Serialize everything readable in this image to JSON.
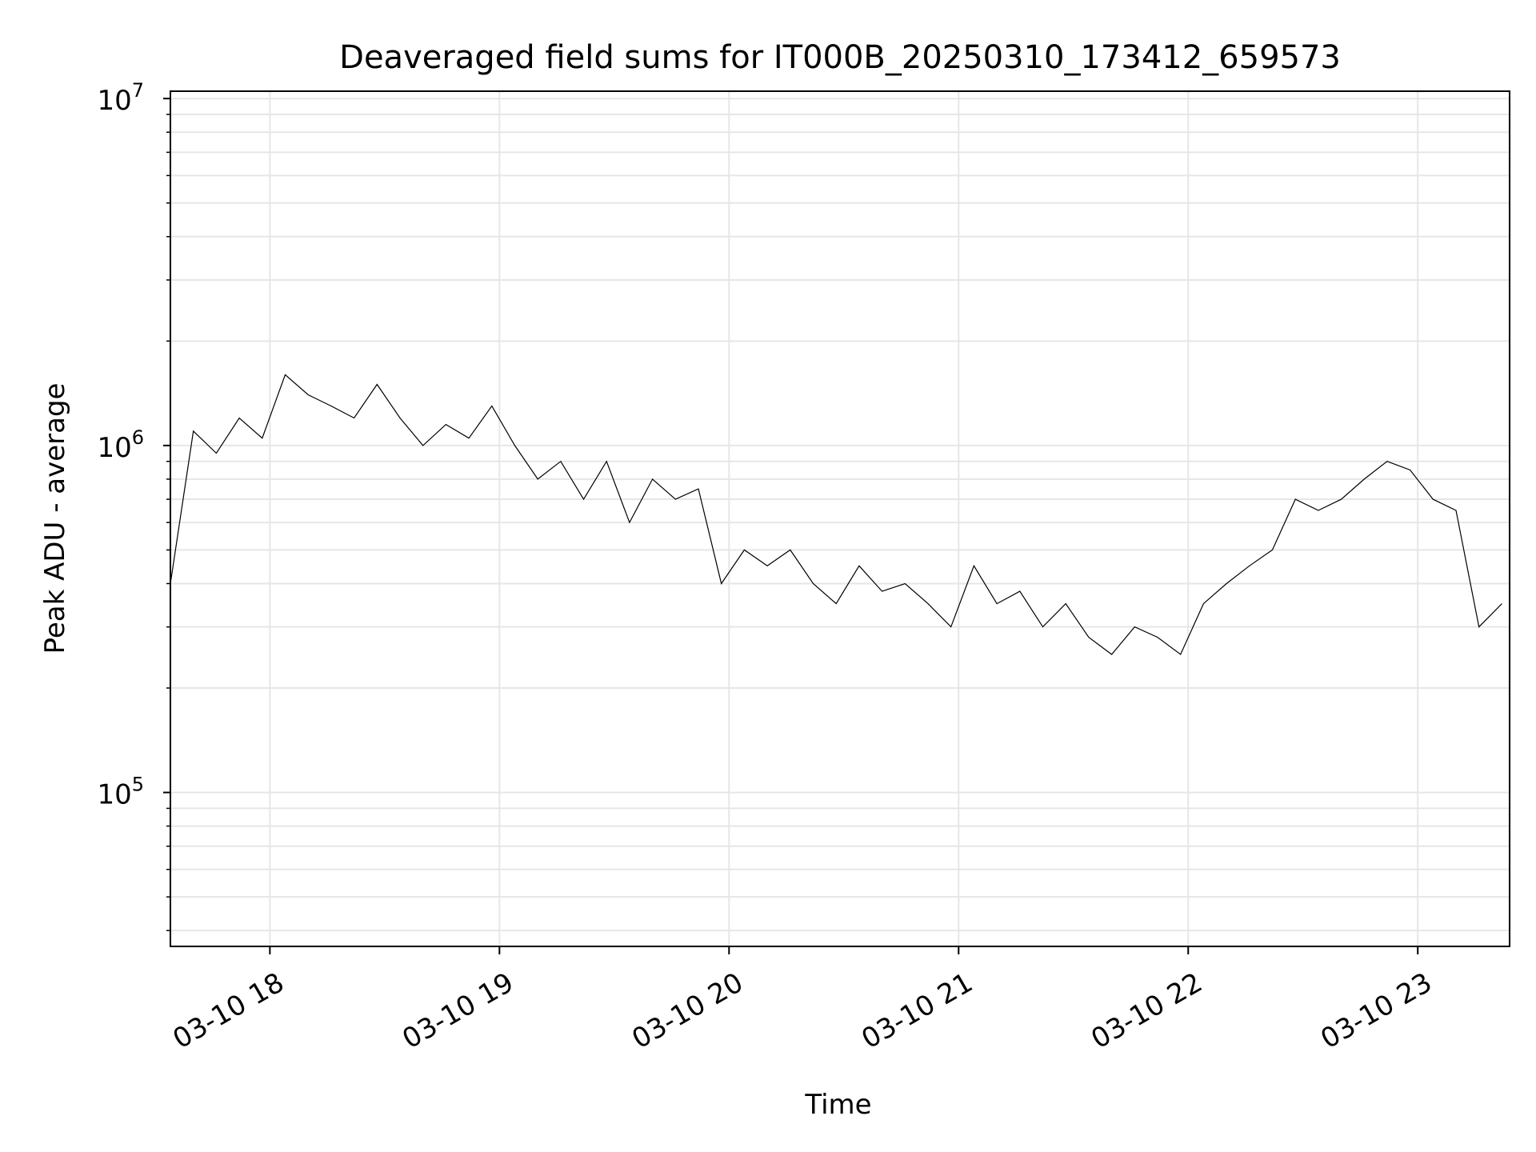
{
  "chart_data": {
    "type": "line",
    "title": "Deaveraged field sums for IT000B_20250310_173412_659573",
    "xlabel": "Time",
    "ylabel": "Peak ADU - average",
    "y_scale": "log",
    "ylim": [
      36000,
      10500000
    ],
    "xlim": [
      "2025-03-10 17:34",
      "2025-03-10 23:24"
    ],
    "x_tick_labels": [
      "03-10 18",
      "03-10 19",
      "03-10 20",
      "03-10 21",
      "03-10 22",
      "03-10 23"
    ],
    "x_tick_times": [
      "2025-03-10 18:00",
      "2025-03-10 19:00",
      "2025-03-10 20:00",
      "2025-03-10 21:00",
      "2025-03-10 22:00",
      "2025-03-10 23:00"
    ],
    "y_ticks": [
      {
        "base": "10",
        "exp": "5",
        "value": 100000
      },
      {
        "base": "10",
        "exp": "6",
        "value": 1000000
      },
      {
        "base": "10",
        "exp": "7",
        "value": 10000000
      }
    ],
    "grid": true,
    "legend": "none",
    "line_color": "#000000",
    "series": [
      {
        "x": [
          "2025-03-10 17:34",
          "2025-03-10 17:40",
          "2025-03-10 17:46",
          "2025-03-10 17:52",
          "2025-03-10 17:58",
          "2025-03-10 18:04",
          "2025-03-10 18:10",
          "2025-03-10 18:16",
          "2025-03-10 18:22",
          "2025-03-10 18:28",
          "2025-03-10 18:34",
          "2025-03-10 18:40",
          "2025-03-10 18:46",
          "2025-03-10 18:52",
          "2025-03-10 18:58",
          "2025-03-10 19:04",
          "2025-03-10 19:10",
          "2025-03-10 19:16",
          "2025-03-10 19:22",
          "2025-03-10 19:28",
          "2025-03-10 19:34",
          "2025-03-10 19:40",
          "2025-03-10 19:46",
          "2025-03-10 19:52",
          "2025-03-10 19:58",
          "2025-03-10 20:04",
          "2025-03-10 20:10",
          "2025-03-10 20:16",
          "2025-03-10 20:22",
          "2025-03-10 20:28",
          "2025-03-10 20:34",
          "2025-03-10 20:40",
          "2025-03-10 20:46",
          "2025-03-10 20:52",
          "2025-03-10 20:58",
          "2025-03-10 21:04",
          "2025-03-10 21:10",
          "2025-03-10 21:16",
          "2025-03-10 21:22",
          "2025-03-10 21:28",
          "2025-03-10 21:34",
          "2025-03-10 21:40",
          "2025-03-10 21:46",
          "2025-03-10 21:52",
          "2025-03-10 21:58",
          "2025-03-10 22:04",
          "2025-03-10 22:10",
          "2025-03-10 22:16",
          "2025-03-10 22:22",
          "2025-03-10 22:28",
          "2025-03-10 22:34",
          "2025-03-10 22:40",
          "2025-03-10 22:46",
          "2025-03-10 22:52",
          "2025-03-10 22:58",
          "2025-03-10 23:04",
          "2025-03-10 23:10",
          "2025-03-10 23:16",
          "2025-03-10 23:22"
        ],
        "y": [
          400000,
          1100000,
          950000,
          1200000,
          1050000,
          1600000,
          1400000,
          1300000,
          1200000,
          1500000,
          1200000,
          1000000,
          1150000,
          1050000,
          1300000,
          1000000,
          800000,
          900000,
          700000,
          900000,
          600000,
          800000,
          700000,
          750000,
          400000,
          500000,
          450000,
          500000,
          400000,
          350000,
          450000,
          380000,
          400000,
          350000,
          300000,
          450000,
          350000,
          380000,
          300000,
          350000,
          280000,
          250000,
          300000,
          280000,
          250000,
          350000,
          400000,
          450000,
          500000,
          700000,
          650000,
          700000,
          800000,
          900000,
          850000,
          700000,
          650000,
          300000,
          350000
        ]
      }
    ]
  }
}
